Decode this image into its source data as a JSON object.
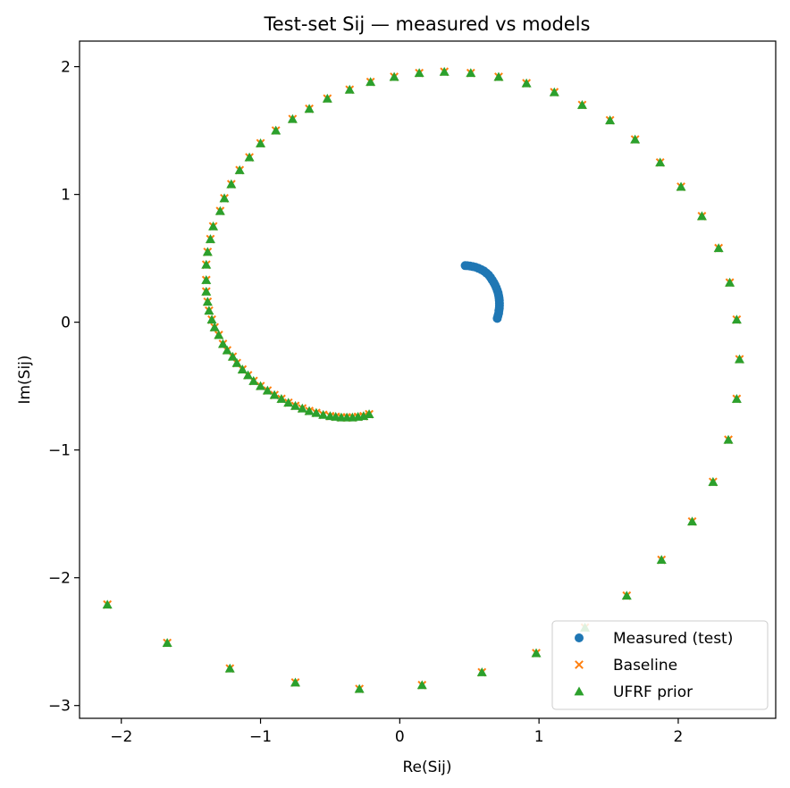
{
  "chart_data": {
    "type": "scatter",
    "title": "Test-set Sij — measured vs models",
    "xlabel": "Re(Sij)",
    "ylabel": "Im(Sij)",
    "xlim": [
      -2.3,
      2.7
    ],
    "ylim": [
      -3.1,
      2.2
    ],
    "xticks": [
      -2,
      -1,
      0,
      1,
      2
    ],
    "yticks": [
      -3,
      -2,
      -1,
      0,
      1,
      2
    ],
    "grid": false,
    "legend_position": "lower-right",
    "colors": {
      "measured": "#1f77b4",
      "baseline": "#ff7f0e",
      "ufrf": "#2ca02c"
    },
    "series": [
      {
        "name": "Measured (test)",
        "marker": "circle",
        "points": [
          [
            0.7,
            0.03
          ],
          [
            0.705,
            0.05
          ],
          [
            0.71,
            0.07
          ],
          [
            0.712,
            0.09
          ],
          [
            0.715,
            0.11
          ],
          [
            0.716,
            0.13
          ],
          [
            0.716,
            0.15
          ],
          [
            0.715,
            0.17
          ],
          [
            0.713,
            0.19
          ],
          [
            0.71,
            0.21
          ],
          [
            0.706,
            0.23
          ],
          [
            0.7,
            0.25
          ],
          [
            0.693,
            0.27
          ],
          [
            0.685,
            0.29
          ],
          [
            0.675,
            0.31
          ],
          [
            0.664,
            0.33
          ],
          [
            0.652,
            0.35
          ],
          [
            0.638,
            0.37
          ],
          [
            0.622,
            0.385
          ],
          [
            0.605,
            0.4
          ],
          [
            0.585,
            0.412
          ],
          [
            0.565,
            0.422
          ],
          [
            0.545,
            0.43
          ],
          [
            0.525,
            0.435
          ],
          [
            0.505,
            0.44
          ],
          [
            0.485,
            0.442
          ],
          [
            0.47,
            0.443
          ]
        ]
      },
      {
        "name": "Baseline",
        "marker": "x",
        "points": [
          [
            -0.22,
            -0.72
          ],
          [
            -0.26,
            -0.735
          ],
          [
            -0.3,
            -0.74
          ],
          [
            -0.34,
            -0.745
          ],
          [
            -0.38,
            -0.745
          ],
          [
            -0.42,
            -0.745
          ],
          [
            -0.46,
            -0.74
          ],
          [
            -0.5,
            -0.735
          ],
          [
            -0.55,
            -0.725
          ],
          [
            -0.6,
            -0.71
          ],
          [
            -0.65,
            -0.695
          ],
          [
            -0.7,
            -0.675
          ],
          [
            -0.75,
            -0.655
          ],
          [
            -0.8,
            -0.63
          ],
          [
            -0.85,
            -0.6
          ],
          [
            -0.9,
            -0.57
          ],
          [
            -0.95,
            -0.535
          ],
          [
            -1.0,
            -0.5
          ],
          [
            -1.05,
            -0.46
          ],
          [
            -1.09,
            -0.415
          ],
          [
            -1.13,
            -0.37
          ],
          [
            -1.17,
            -0.32
          ],
          [
            -1.2,
            -0.27
          ],
          [
            -1.24,
            -0.22
          ],
          [
            -1.27,
            -0.17
          ],
          [
            -1.3,
            -0.1
          ],
          [
            -1.33,
            -0.04
          ],
          [
            -1.35,
            0.02
          ],
          [
            -1.37,
            0.09
          ],
          [
            -1.38,
            0.16
          ],
          [
            -1.39,
            0.24
          ],
          [
            -1.39,
            0.33
          ],
          [
            -1.39,
            0.45
          ],
          [
            -1.38,
            0.55
          ],
          [
            -1.36,
            0.65
          ],
          [
            -1.34,
            0.75
          ],
          [
            -1.29,
            0.87
          ],
          [
            -1.26,
            0.97
          ],
          [
            -1.21,
            1.08
          ],
          [
            -1.15,
            1.19
          ],
          [
            -1.08,
            1.29
          ],
          [
            -1.0,
            1.4
          ],
          [
            -0.89,
            1.5
          ],
          [
            -0.77,
            1.59
          ],
          [
            -0.65,
            1.67
          ],
          [
            -0.52,
            1.75
          ],
          [
            -0.36,
            1.82
          ],
          [
            -0.21,
            1.88
          ],
          [
            -0.04,
            1.92
          ],
          [
            0.14,
            1.95
          ],
          [
            0.32,
            1.96
          ],
          [
            0.51,
            1.95
          ],
          [
            0.71,
            1.92
          ],
          [
            0.91,
            1.87
          ],
          [
            1.11,
            1.8
          ],
          [
            1.31,
            1.7
          ],
          [
            1.51,
            1.58
          ],
          [
            1.69,
            1.43
          ],
          [
            1.87,
            1.25
          ],
          [
            2.02,
            1.06
          ],
          [
            2.17,
            0.83
          ],
          [
            2.29,
            0.58
          ],
          [
            2.37,
            0.31
          ],
          [
            2.42,
            0.02
          ],
          [
            2.44,
            -0.29
          ],
          [
            2.42,
            -0.6
          ],
          [
            2.36,
            -0.92
          ],
          [
            2.25,
            -1.25
          ],
          [
            2.1,
            -1.56
          ],
          [
            1.88,
            -1.86
          ],
          [
            1.63,
            -2.14
          ],
          [
            1.33,
            -2.39
          ],
          [
            0.98,
            -2.59
          ],
          [
            0.59,
            -2.74
          ],
          [
            0.16,
            -2.84
          ],
          [
            -0.29,
            -2.87
          ],
          [
            -0.75,
            -2.82
          ],
          [
            -1.22,
            -2.71
          ],
          [
            -1.67,
            -2.51
          ],
          [
            -2.1,
            -2.21
          ]
        ]
      },
      {
        "name": "UFRF prior",
        "marker": "triangle",
        "points": [
          [
            -0.22,
            -0.72
          ],
          [
            -0.26,
            -0.735
          ],
          [
            -0.3,
            -0.74
          ],
          [
            -0.34,
            -0.745
          ],
          [
            -0.38,
            -0.745
          ],
          [
            -0.42,
            -0.745
          ],
          [
            -0.46,
            -0.74
          ],
          [
            -0.5,
            -0.735
          ],
          [
            -0.55,
            -0.725
          ],
          [
            -0.6,
            -0.71
          ],
          [
            -0.65,
            -0.695
          ],
          [
            -0.7,
            -0.675
          ],
          [
            -0.75,
            -0.655
          ],
          [
            -0.8,
            -0.63
          ],
          [
            -0.85,
            -0.6
          ],
          [
            -0.9,
            -0.57
          ],
          [
            -0.95,
            -0.535
          ],
          [
            -1.0,
            -0.5
          ],
          [
            -1.05,
            -0.46
          ],
          [
            -1.09,
            -0.415
          ],
          [
            -1.13,
            -0.37
          ],
          [
            -1.17,
            -0.32
          ],
          [
            -1.2,
            -0.27
          ],
          [
            -1.24,
            -0.22
          ],
          [
            -1.27,
            -0.17
          ],
          [
            -1.3,
            -0.1
          ],
          [
            -1.33,
            -0.04
          ],
          [
            -1.35,
            0.02
          ],
          [
            -1.37,
            0.09
          ],
          [
            -1.38,
            0.16
          ],
          [
            -1.39,
            0.24
          ],
          [
            -1.39,
            0.33
          ],
          [
            -1.39,
            0.45
          ],
          [
            -1.38,
            0.55
          ],
          [
            -1.36,
            0.65
          ],
          [
            -1.34,
            0.75
          ],
          [
            -1.29,
            0.87
          ],
          [
            -1.26,
            0.97
          ],
          [
            -1.21,
            1.08
          ],
          [
            -1.15,
            1.19
          ],
          [
            -1.08,
            1.29
          ],
          [
            -1.0,
            1.4
          ],
          [
            -0.89,
            1.5
          ],
          [
            -0.77,
            1.59
          ],
          [
            -0.65,
            1.67
          ],
          [
            -0.52,
            1.75
          ],
          [
            -0.36,
            1.82
          ],
          [
            -0.21,
            1.88
          ],
          [
            -0.04,
            1.92
          ],
          [
            0.14,
            1.95
          ],
          [
            0.32,
            1.96
          ],
          [
            0.51,
            1.95
          ],
          [
            0.71,
            1.92
          ],
          [
            0.91,
            1.87
          ],
          [
            1.11,
            1.8
          ],
          [
            1.31,
            1.7
          ],
          [
            1.51,
            1.58
          ],
          [
            1.69,
            1.43
          ],
          [
            1.87,
            1.25
          ],
          [
            2.02,
            1.06
          ],
          [
            2.17,
            0.83
          ],
          [
            2.29,
            0.58
          ],
          [
            2.37,
            0.31
          ],
          [
            2.42,
            0.02
          ],
          [
            2.44,
            -0.29
          ],
          [
            2.42,
            -0.6
          ],
          [
            2.36,
            -0.92
          ],
          [
            2.25,
            -1.25
          ],
          [
            2.1,
            -1.56
          ],
          [
            1.88,
            -1.86
          ],
          [
            1.63,
            -2.14
          ],
          [
            1.33,
            -2.39
          ],
          [
            0.98,
            -2.59
          ],
          [
            0.59,
            -2.74
          ],
          [
            0.16,
            -2.84
          ],
          [
            -0.29,
            -2.87
          ],
          [
            -0.75,
            -2.82
          ],
          [
            -1.22,
            -2.71
          ],
          [
            -1.67,
            -2.51
          ],
          [
            -2.1,
            -2.21
          ]
        ]
      }
    ]
  }
}
